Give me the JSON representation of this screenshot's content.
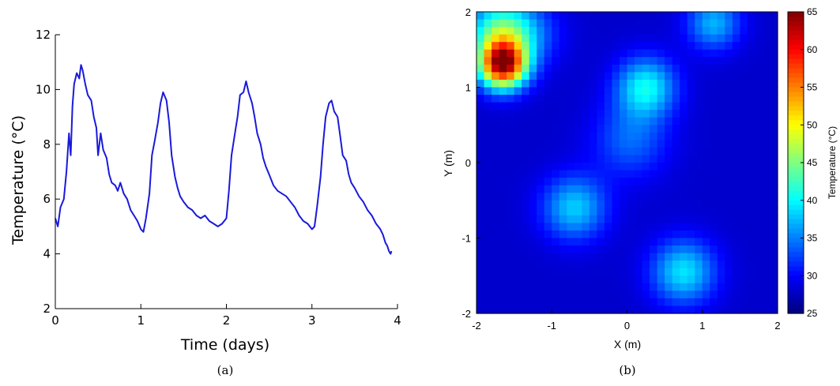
{
  "chart_data": [
    {
      "type": "line",
      "caption": "(a)",
      "xlabel": "Time (days)",
      "ylabel": "Temperature (°C)",
      "xlim": [
        0,
        4
      ],
      "ylim": [
        2,
        12
      ],
      "xticks": [
        0,
        1,
        2,
        3,
        4
      ],
      "yticks": [
        2,
        4,
        6,
        8,
        10,
        12
      ],
      "grid": false,
      "series_color": "#1a1adb",
      "series": [
        {
          "x": [
            0.0,
            0.03,
            0.06,
            0.1,
            0.13,
            0.16,
            0.18,
            0.2,
            0.22,
            0.25,
            0.28,
            0.3,
            0.32,
            0.35,
            0.38,
            0.42,
            0.45,
            0.48,
            0.5,
            0.53,
            0.56,
            0.6,
            0.63,
            0.66,
            0.7,
            0.73,
            0.76,
            0.8,
            0.84,
            0.88,
            0.92,
            0.96,
            1.0,
            1.03,
            1.06,
            1.1,
            1.13,
            1.16,
            1.2,
            1.23,
            1.26,
            1.3,
            1.33,
            1.36,
            1.4,
            1.43,
            1.46,
            1.5,
            1.55,
            1.6,
            1.65,
            1.7,
            1.75,
            1.8,
            1.85,
            1.9,
            1.95,
            2.0,
            2.03,
            2.06,
            2.1,
            2.13,
            2.16,
            2.2,
            2.23,
            2.26,
            2.3,
            2.33,
            2.36,
            2.4,
            2.43,
            2.46,
            2.5,
            2.55,
            2.6,
            2.65,
            2.7,
            2.75,
            2.8,
            2.85,
            2.9,
            2.95,
            3.0,
            3.03,
            3.06,
            3.1,
            3.13,
            3.16,
            3.2,
            3.23,
            3.26,
            3.3,
            3.33,
            3.36,
            3.4,
            3.43,
            3.46,
            3.5,
            3.55,
            3.6,
            3.65,
            3.7,
            3.75,
            3.8,
            3.83,
            3.86,
            3.88,
            3.9,
            3.92,
            3.93
          ],
          "y": [
            5.3,
            5.0,
            5.7,
            6.0,
            7.0,
            8.4,
            7.6,
            9.4,
            10.2,
            10.6,
            10.4,
            10.9,
            10.7,
            10.2,
            9.8,
            9.6,
            9.0,
            8.6,
            7.6,
            8.4,
            7.8,
            7.5,
            6.9,
            6.6,
            6.5,
            6.3,
            6.6,
            6.2,
            6.0,
            5.6,
            5.4,
            5.2,
            4.9,
            4.8,
            5.3,
            6.2,
            7.6,
            8.1,
            8.8,
            9.5,
            9.9,
            9.6,
            8.8,
            7.6,
            6.8,
            6.4,
            6.1,
            5.9,
            5.7,
            5.6,
            5.4,
            5.3,
            5.4,
            5.2,
            5.1,
            5.0,
            5.1,
            5.3,
            6.3,
            7.6,
            8.4,
            9.0,
            9.8,
            9.9,
            10.3,
            9.9,
            9.5,
            9.0,
            8.4,
            8.0,
            7.5,
            7.2,
            6.9,
            6.5,
            6.3,
            6.2,
            6.1,
            5.9,
            5.7,
            5.4,
            5.2,
            5.1,
            4.9,
            5.0,
            5.7,
            6.8,
            8.0,
            9.0,
            9.5,
            9.6,
            9.2,
            9.0,
            8.3,
            7.6,
            7.4,
            6.9,
            6.6,
            6.4,
            6.1,
            5.9,
            5.6,
            5.4,
            5.1,
            4.9,
            4.7,
            4.4,
            4.3,
            4.1,
            4.0,
            4.1
          ]
        }
      ]
    },
    {
      "type": "heatmap",
      "caption": "(b)",
      "xlabel": "X (m)",
      "ylabel": "Y (m)",
      "xlim": [
        -2,
        2
      ],
      "ylim": [
        -2,
        2
      ],
      "xticks": [
        -2,
        -1,
        0,
        1,
        2
      ],
      "yticks": [
        -2,
        -1,
        0,
        1,
        2
      ],
      "colorbar_label": "Temperature (°C)",
      "clim": [
        25,
        65
      ],
      "colorbar_ticks": [
        25,
        30,
        35,
        40,
        45,
        50,
        55,
        60,
        65
      ],
      "colormap": "jet",
      "grid_size": 40,
      "background": 28,
      "hot_spots": [
        {
          "x": -1.65,
          "y": 1.3,
          "peak": 62,
          "sigma": 0.22
        },
        {
          "x": -1.7,
          "y": 1.75,
          "peak": 42,
          "sigma": 0.3
        },
        {
          "x": 0.25,
          "y": 1.0,
          "peak": 40,
          "sigma": 0.28
        },
        {
          "x": 0.05,
          "y": 0.3,
          "peak": 34,
          "sigma": 0.35
        },
        {
          "x": 1.15,
          "y": 1.85,
          "peak": 37,
          "sigma": 0.25
        },
        {
          "x": -0.7,
          "y": -0.6,
          "peak": 38,
          "sigma": 0.3
        },
        {
          "x": 0.75,
          "y": -1.45,
          "peak": 39,
          "sigma": 0.3
        },
        {
          "x": -1.3,
          "y": 1.7,
          "peak": 33,
          "sigma": 0.3
        }
      ]
    }
  ]
}
